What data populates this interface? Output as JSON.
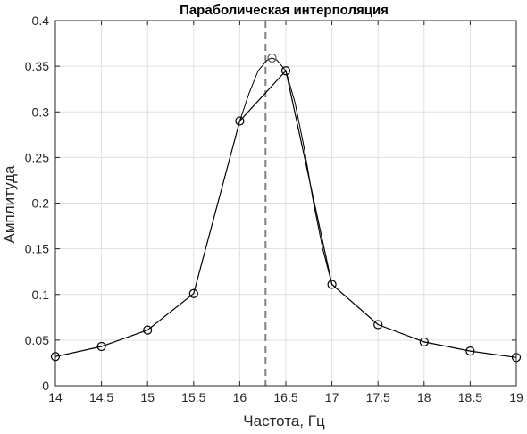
{
  "chart_data": {
    "type": "line",
    "title": "Параболическая интерполяция",
    "xlabel": "Частота, Гц",
    "ylabel": "Амплитуда",
    "xlim": [
      14,
      19
    ],
    "ylim": [
      0,
      0.4
    ],
    "xticks": [
      14,
      14.5,
      15,
      15.5,
      16,
      16.5,
      17,
      17.5,
      18,
      18.5,
      19
    ],
    "xtick_labels": [
      "14",
      "14.5",
      "15",
      "15.5",
      "16",
      "16.5",
      "17",
      "17.5",
      "18",
      "18.5",
      "19"
    ],
    "yticks": [
      0,
      0.05,
      0.1,
      0.15,
      0.2,
      0.25,
      0.3,
      0.35,
      0.4
    ],
    "ytick_labels": [
      "0",
      "0.05",
      "0.1",
      "0.15",
      "0.2",
      "0.25",
      "0.3",
      "0.35",
      "0.4"
    ],
    "grid": true,
    "colors": {
      "line": "#000000",
      "grid": "#dfdfdf",
      "peak_line": "#808080"
    },
    "series": [
      {
        "x": [
          14,
          14.5,
          15,
          15.5,
          16,
          16.5,
          17,
          17.5,
          18,
          18.5,
          19
        ],
        "y": [
          0.032,
          0.043,
          0.061,
          0.101,
          0.29,
          0.345,
          0.111,
          0.067,
          0.048,
          0.038,
          0.031
        ],
        "marker": "circle"
      }
    ],
    "interpolation": {
      "x": [
        16,
        16.1,
        16.2,
        16.3,
        16.35,
        16.4,
        16.5,
        16.6,
        16.7,
        16.8,
        16.9,
        17
      ],
      "y": [
        0.29,
        0.32,
        0.345,
        0.357,
        0.359,
        0.357,
        0.345,
        0.31,
        0.26,
        0.2,
        0.15,
        0.111
      ]
    },
    "peak": {
      "x": 16.35,
      "y": 0.359
    },
    "vertical_line_x": 16.28
  }
}
